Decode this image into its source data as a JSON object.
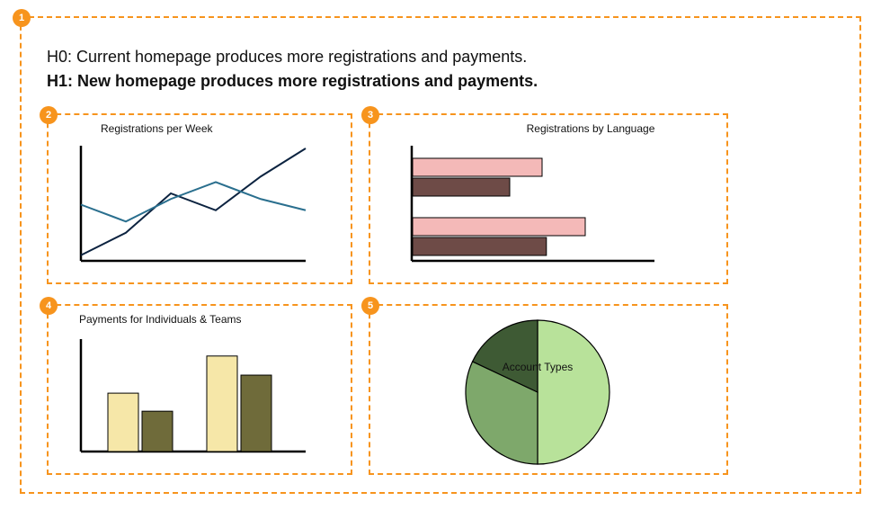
{
  "badge_bg": "#f7941d",
  "border_color": "#f7941d",
  "hypotheses": {
    "h0": "H0: Current homepage produces more registrations and payments.",
    "h1": "H1: New homepage produces more registrations and payments."
  },
  "badges": {
    "outer": "1",
    "p2": "2",
    "p3": "3",
    "p4": "4",
    "p5": "5"
  },
  "panels": {
    "reg_per_week": {
      "type": "line",
      "title": "Registrations per Week",
      "title_fontsize": 12,
      "axis_color": "#000000",
      "line_width": 2,
      "series": [
        {
          "color": "#0c2340",
          "points": [
            [
              0,
              5
            ],
            [
              20,
              25
            ],
            [
              40,
              60
            ],
            [
              60,
              45
            ],
            [
              80,
              75
            ],
            [
              100,
              100
            ]
          ]
        },
        {
          "color": "#2a6f8e",
          "points": [
            [
              0,
              50
            ],
            [
              20,
              35
            ],
            [
              40,
              55
            ],
            [
              60,
              70
            ],
            [
              80,
              55
            ],
            [
              100,
              45
            ]
          ]
        }
      ],
      "xlim": [
        0,
        100
      ],
      "ylim": [
        0,
        100
      ]
    },
    "reg_by_lang": {
      "type": "hbar-grouped",
      "title": "Registrations by Language",
      "title_fontsize": 12,
      "axis_color": "#000000",
      "bar_border": "#000000",
      "groups": [
        {
          "bars": [
            {
              "value": 60,
              "color": "#f4b9b8"
            },
            {
              "value": 45,
              "color": "#6e4b47"
            }
          ]
        },
        {
          "bars": [
            {
              "value": 80,
              "color": "#f4b9b8"
            },
            {
              "value": 62,
              "color": "#6e4b47"
            }
          ]
        }
      ],
      "xlim": [
        0,
        100
      ]
    },
    "payments": {
      "type": "vbar-grouped",
      "title": "Payments for Individuals & Teams",
      "title_fontsize": 12,
      "axis_color": "#000000",
      "bar_border": "#000000",
      "groups": [
        {
          "bars": [
            {
              "value": 55,
              "color": "#f6e7a8"
            },
            {
              "value": 38,
              "color": "#6f6b3a"
            }
          ]
        },
        {
          "bars": [
            {
              "value": 90,
              "color": "#f6e7a8"
            },
            {
              "value": 72,
              "color": "#6f6b3a"
            }
          ]
        }
      ],
      "ylim": [
        0,
        100
      ]
    },
    "account_types": {
      "type": "pie",
      "title": "Account Types",
      "title_fontsize": 12,
      "stroke": "#000000",
      "stroke_width": 1.2,
      "slices": [
        {
          "value": 50,
          "color": "#b8e29a"
        },
        {
          "value": 32,
          "color": "#7ea86b"
        },
        {
          "value": 18,
          "color": "#3e5a34"
        }
      ]
    }
  }
}
